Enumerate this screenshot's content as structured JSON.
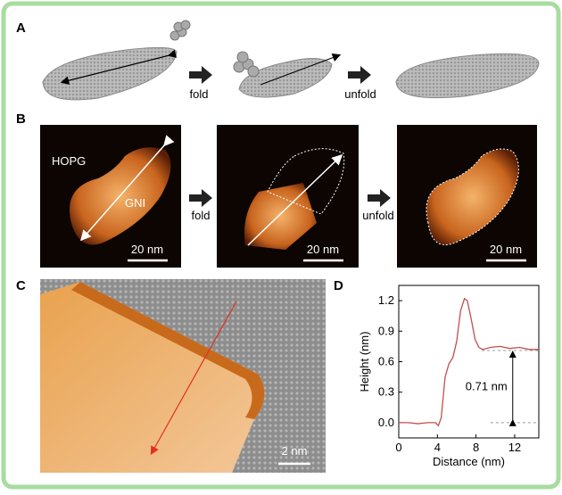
{
  "panels": {
    "labels": [
      "A",
      "B",
      "C",
      "D"
    ],
    "a": {
      "steps": [
        "fold",
        "unfold"
      ]
    },
    "b": {
      "substrate": "HOPG",
      "flake": "GNI",
      "steps": [
        "fold",
        "unfold"
      ],
      "scale_bars": [
        "20 nm",
        "20 nm",
        "20 nm"
      ]
    },
    "c": {
      "scale_bar": "2 nm"
    }
  },
  "chart_data": {
    "type": "line",
    "xlabel": "Distance (nm)",
    "ylabel": "Height (nm)",
    "x": [
      0,
      1,
      2,
      3,
      3.8,
      4.1,
      4.4,
      4.8,
      5.2,
      5.6,
      6.0,
      6.4,
      6.8,
      7.1,
      7.5,
      7.9,
      8.3,
      8.7,
      9.5,
      10.5,
      11.5,
      12.5,
      13.5,
      14.5
    ],
    "values": [
      0.0,
      0.0,
      -0.01,
      0.0,
      0.0,
      -0.03,
      0.05,
      0.45,
      0.58,
      0.64,
      0.8,
      1.1,
      1.22,
      1.2,
      1.02,
      0.82,
      0.74,
      0.72,
      0.74,
      0.75,
      0.73,
      0.74,
      0.72,
      0.72
    ],
    "color": "#c0504d",
    "xlim": [
      0,
      14.5
    ],
    "xticks": [
      0,
      4,
      8,
      12
    ],
    "ylim": [
      -0.15,
      1.35
    ],
    "yticks": [
      {
        "value": 0,
        "label": "0.0"
      },
      0.3,
      0.6,
      0.9,
      1.2
    ],
    "annotations": [
      {
        "text": "0.71 nm",
        "value": 0.71
      }
    ]
  }
}
